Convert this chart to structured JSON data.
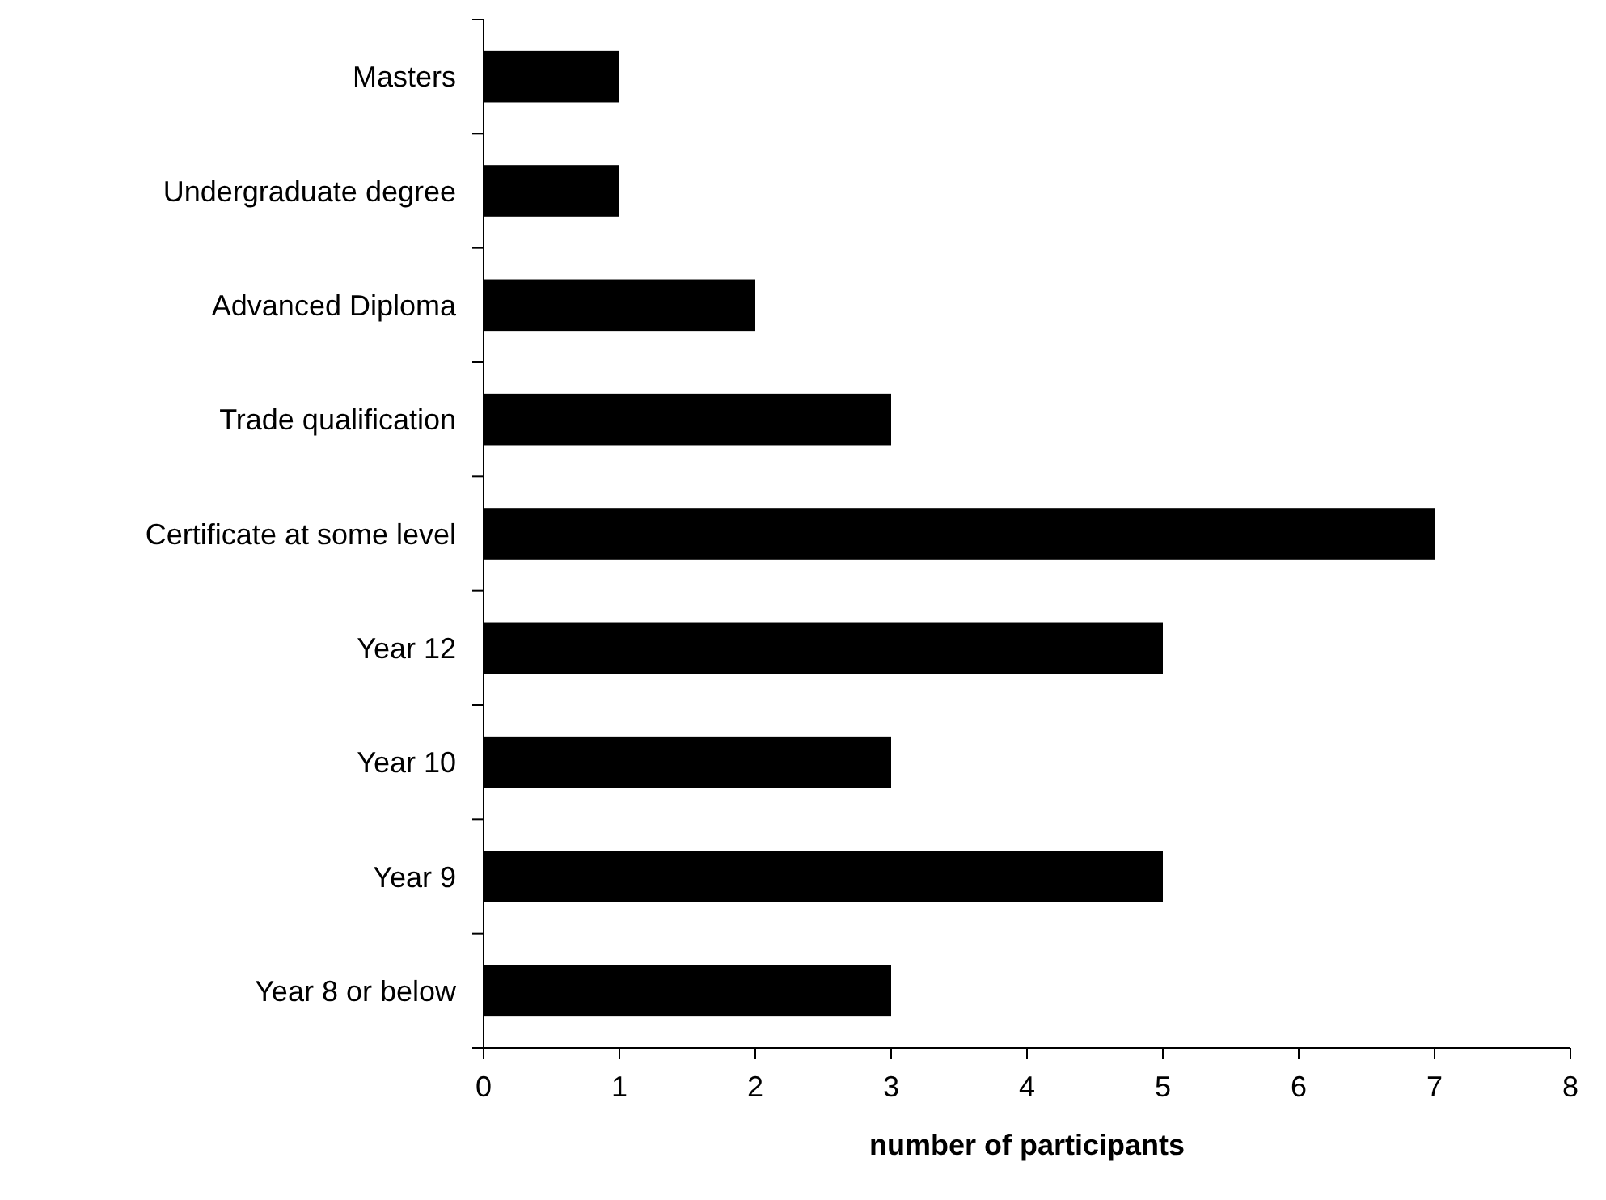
{
  "chart_data": {
    "type": "bar",
    "orientation": "horizontal",
    "xlabel": "number of participants",
    "categories": [
      "Masters",
      "Undergraduate degree",
      "Advanced Diploma",
      "Trade qualification",
      "Certificate at some level",
      "Year 12",
      "Year 10",
      "Year 9",
      "Year 8 or below"
    ],
    "values": [
      1,
      1,
      2,
      3,
      7,
      5,
      3,
      5,
      3
    ],
    "color": "#000000",
    "xlim": [
      0,
      8
    ],
    "xticks": [
      0,
      1,
      2,
      3,
      4,
      5,
      6,
      7,
      8
    ],
    "grid": false
  }
}
